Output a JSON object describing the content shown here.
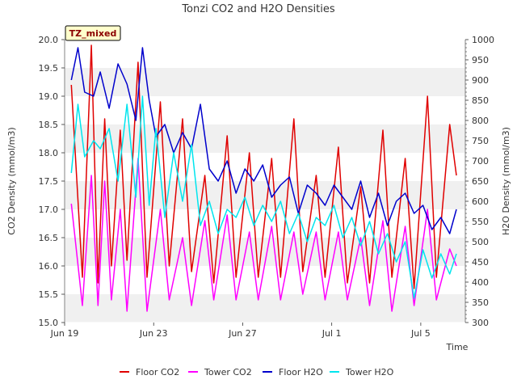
{
  "chart_data": {
    "type": "line",
    "title": "Tonzi CO2 and H2O Densities",
    "badge": "TZ_mixed",
    "xlabel": "Time",
    "ylabel_left": "CO2 Density (mmol/m3)",
    "ylabel_right": "H2O Density (mmol/m3)",
    "x_ticks": [
      "Jun 19",
      "Jun 23",
      "Jun 27",
      "Jul 1",
      "Jul 5"
    ],
    "x_range_days": [
      19,
      37
    ],
    "ylim_left": [
      15.0,
      20.0
    ],
    "ylim_right": [
      300,
      1000
    ],
    "y_ticks_left": [
      "15.0",
      "15.5",
      "16.0",
      "16.5",
      "17.0",
      "17.5",
      "18.0",
      "18.5",
      "19.0",
      "19.5",
      "20.0"
    ],
    "y_ticks_right": [
      "300",
      "350",
      "400",
      "450",
      "500",
      "550",
      "600",
      "650",
      "700",
      "750",
      "800",
      "850",
      "900",
      "950",
      "1000"
    ],
    "grid": false,
    "background_bands": true,
    "legend_position": "bottom",
    "series": [
      {
        "name": "Floor CO2",
        "axis": "left",
        "color": "#e00000",
        "days": [
          19.3,
          19.8,
          20.2,
          20.5,
          20.8,
          21.1,
          21.5,
          21.8,
          22.3,
          22.7,
          23.3,
          23.7,
          24.3,
          24.7,
          25.3,
          25.7,
          26.3,
          26.7,
          27.3,
          27.7,
          28.3,
          28.7,
          29.3,
          29.7,
          30.3,
          30.7,
          31.3,
          31.7,
          32.3,
          32.7,
          33.3,
          33.7,
          34.3,
          34.7,
          35.3,
          35.7,
          36.3,
          36.6
        ],
        "values": [
          19.2,
          15.8,
          19.9,
          15.7,
          18.6,
          16.0,
          18.4,
          16.1,
          19.6,
          15.8,
          18.9,
          16.0,
          18.6,
          15.9,
          17.6,
          15.7,
          18.3,
          15.8,
          18.0,
          15.8,
          17.9,
          15.8,
          18.6,
          15.9,
          17.6,
          15.8,
          18.1,
          15.7,
          17.4,
          15.7,
          18.4,
          15.8,
          17.9,
          15.6,
          19.0,
          15.8,
          18.5,
          17.6
        ]
      },
      {
        "name": "Tower CO2",
        "axis": "left",
        "color": "#ff00ff",
        "days": [
          19.3,
          19.8,
          20.2,
          20.5,
          20.8,
          21.1,
          21.5,
          21.8,
          22.3,
          22.7,
          23.3,
          23.7,
          24.3,
          24.7,
          25.3,
          25.7,
          26.3,
          26.7,
          27.3,
          27.7,
          28.3,
          28.7,
          29.3,
          29.7,
          30.3,
          30.7,
          31.3,
          31.7,
          32.3,
          32.7,
          33.3,
          33.7,
          34.3,
          34.7,
          35.3,
          35.7,
          36.3,
          36.6
        ],
        "values": [
          17.1,
          15.3,
          17.6,
          15.3,
          17.5,
          15.4,
          17.0,
          15.2,
          17.9,
          15.2,
          17.0,
          15.4,
          16.5,
          15.3,
          16.8,
          15.4,
          16.9,
          15.4,
          16.6,
          15.4,
          16.7,
          15.4,
          16.6,
          15.5,
          16.6,
          15.4,
          16.6,
          15.4,
          16.5,
          15.3,
          16.8,
          15.2,
          16.7,
          15.3,
          17.0,
          15.4,
          16.3,
          16.0
        ]
      },
      {
        "name": "Floor H2O",
        "axis": "right",
        "color": "#0000cc",
        "days": [
          19.3,
          19.6,
          19.9,
          20.3,
          20.6,
          21.0,
          21.4,
          21.8,
          22.2,
          22.5,
          22.8,
          23.1,
          23.5,
          23.9,
          24.3,
          24.7,
          25.1,
          25.5,
          25.9,
          26.3,
          26.7,
          27.1,
          27.5,
          27.9,
          28.3,
          28.7,
          29.1,
          29.5,
          29.9,
          30.3,
          30.7,
          31.1,
          31.5,
          31.9,
          32.3,
          32.7,
          33.1,
          33.5,
          33.9,
          34.3,
          34.7,
          35.1,
          35.5,
          35.9,
          36.3,
          36.6
        ],
        "values": [
          900,
          980,
          870,
          860,
          920,
          830,
          940,
          890,
          800,
          980,
          850,
          760,
          790,
          720,
          770,
          730,
          840,
          680,
          650,
          700,
          620,
          680,
          650,
          690,
          610,
          640,
          660,
          570,
          640,
          620,
          590,
          640,
          610,
          580,
          650,
          560,
          620,
          540,
          600,
          620,
          570,
          590,
          530,
          560,
          520,
          580
        ]
      },
      {
        "name": "Tower H2O",
        "axis": "right",
        "color": "#00e5ee",
        "days": [
          19.3,
          19.6,
          19.9,
          20.3,
          20.6,
          21.0,
          21.4,
          21.8,
          22.2,
          22.5,
          22.8,
          23.1,
          23.5,
          23.9,
          24.3,
          24.7,
          25.1,
          25.5,
          25.9,
          26.3,
          26.7,
          27.1,
          27.5,
          27.9,
          28.3,
          28.7,
          29.1,
          29.5,
          29.9,
          30.3,
          30.7,
          31.1,
          31.5,
          31.9,
          32.3,
          32.7,
          33.1,
          33.5,
          33.9,
          34.3,
          34.7,
          35.1,
          35.5,
          35.9,
          36.3,
          36.6
        ],
        "values": [
          670,
          840,
          710,
          750,
          730,
          780,
          650,
          840,
          610,
          860,
          590,
          780,
          560,
          720,
          600,
          740,
          540,
          600,
          520,
          580,
          560,
          610,
          540,
          590,
          550,
          600,
          520,
          570,
          500,
          560,
          540,
          590,
          510,
          560,
          490,
          550,
          470,
          520,
          450,
          500,
          360,
          480,
          410,
          470,
          420,
          470
        ]
      }
    ]
  }
}
